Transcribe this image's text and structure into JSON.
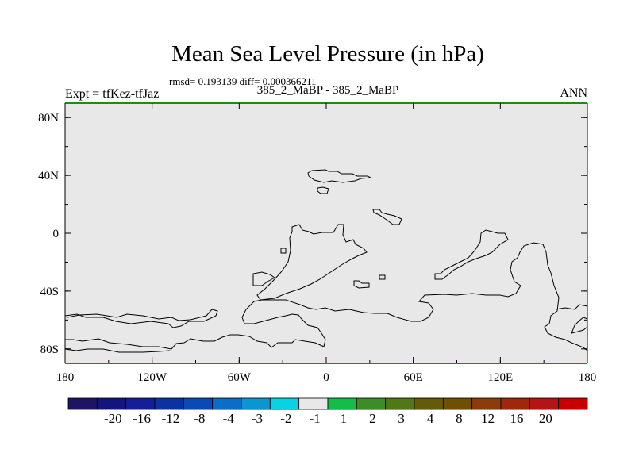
{
  "title": "Mean Sea Level Pressure (in hPa)",
  "stats": "rmsd= 0.193139 diff= 0.000366211",
  "expt_label": "Expt = tfKez-tfJaz",
  "expt_subtitle": "385_2_MaBP - 385_2_MaBP",
  "season": "ANN",
  "map": {
    "projection": "cylindrical equidistant",
    "lon_range": [
      -180,
      180
    ],
    "lat_range": [
      -90,
      90
    ],
    "field_color": "#e8e8e8",
    "coastline_color": "#000000",
    "frame_top_bottom_color": "#1e8a1e",
    "lon_ticks": [
      "180",
      "120W",
      "60W",
      "0",
      "60E",
      "120E",
      "180"
    ],
    "lat_ticks": [
      "80N",
      "40N",
      "0",
      "40S",
      "80S"
    ]
  },
  "colorbar": {
    "colors": [
      "#1e1464",
      "#14147e",
      "#141e98",
      "#0a32a0",
      "#0a4ab4",
      "#0a6ec8",
      "#0a96d2",
      "#0ad2e6",
      "#e8e8e8",
      "#14be46",
      "#3c8c28",
      "#507814",
      "#645a0a",
      "#6e5000",
      "#8c3c0a",
      "#a0280a",
      "#b41414",
      "#c80000"
    ],
    "labels": [
      "-20",
      "-16",
      "-12",
      "-8",
      "-4",
      "-3",
      "-2",
      "-1",
      "1",
      "2",
      "3",
      "4",
      "8",
      "12",
      "16",
      "20"
    ]
  }
}
